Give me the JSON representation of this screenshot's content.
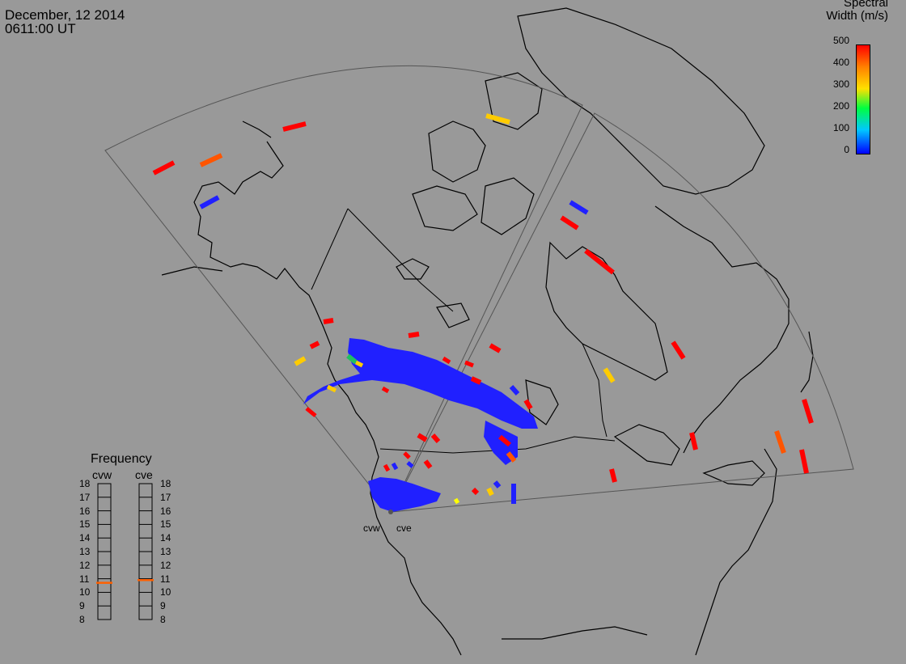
{
  "header": {
    "date": "December, 12 2014",
    "time": "0611:00 UT"
  },
  "colorbar": {
    "title_line1": "Spectral",
    "title_line2": "Width (m/s)",
    "ticks": [
      "500",
      "400",
      "300",
      "200",
      "100",
      "0"
    ],
    "range": [
      0,
      500
    ],
    "scale_colors": [
      "#0000ff",
      "#00c8ff",
      "#00ff40",
      "#ffe000",
      "#ff8000",
      "#ff0000"
    ]
  },
  "frequency": {
    "title": "Frequency",
    "radars": [
      {
        "name": "cvw",
        "value_mhz": 10.7,
        "marker_color": "#ff6000"
      },
      {
        "name": "cve",
        "value_mhz": 10.9,
        "marker_color": "#ff6000"
      }
    ],
    "ticks": [
      "18",
      "17",
      "16",
      "15",
      "14",
      "13",
      "12",
      "11",
      "10",
      "9",
      "8"
    ],
    "range": [
      8,
      18
    ]
  },
  "sites": {
    "labels": [
      "cvw",
      "cve"
    ]
  },
  "colors": {
    "background": "#999999",
    "lines": "#000000",
    "fov": "#555555",
    "scatter_blue": "#2020ff",
    "red": "#ff0000",
    "orange": "#ff5500",
    "yellow": "#ffcc00"
  }
}
